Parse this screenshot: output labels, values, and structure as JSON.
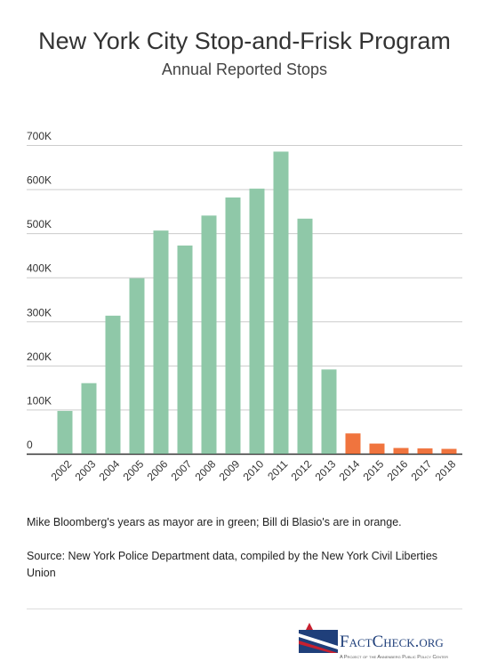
{
  "chart_data": {
    "type": "bar",
    "title": "New York City Stop-and-Frisk Program",
    "subtitle": "Annual Reported Stops",
    "categories": [
      "2002",
      "2003",
      "2004",
      "2005",
      "2006",
      "2007",
      "2008",
      "2009",
      "2010",
      "2011",
      "2012",
      "2013",
      "2014",
      "2015",
      "2016",
      "2017",
      "2018"
    ],
    "values": [
      97000,
      160000,
      313000,
      398000,
      506000,
      472000,
      540000,
      581000,
      601000,
      685000,
      533000,
      191000,
      46000,
      23000,
      13000,
      12000,
      11000
    ],
    "colors": [
      "#8fc8a8",
      "#8fc8a8",
      "#8fc8a8",
      "#8fc8a8",
      "#8fc8a8",
      "#8fc8a8",
      "#8fc8a8",
      "#8fc8a8",
      "#8fc8a8",
      "#8fc8a8",
      "#8fc8a8",
      "#8fc8a8",
      "#f0743e",
      "#f0743e",
      "#f0743e",
      "#f0743e",
      "#f0743e"
    ],
    "ylim": [
      0,
      700000
    ],
    "yticks": [
      0,
      {
        "value": 100000,
        "label": "100K"
      },
      {
        "value": 200000,
        "label": "200K"
      },
      {
        "value": 300000,
        "label": "300K"
      },
      {
        "value": 400000,
        "label": "400K"
      },
      {
        "value": 500000,
        "label": "500K"
      },
      {
        "value": 600000,
        "label": "600K"
      },
      {
        "value": 700000,
        "label": "700K"
      }
    ],
    "grid": true,
    "note": "Mike Bloomberg's years as mayor are in green; Bill di Blasio's are in orange.",
    "source": "Source: New York Police Department data, compiled by the New York Civil Liberties Union"
  },
  "footer": {
    "logo": "FactCheck.org",
    "tagline": "A Project of the Annenberg Public Policy Center"
  }
}
